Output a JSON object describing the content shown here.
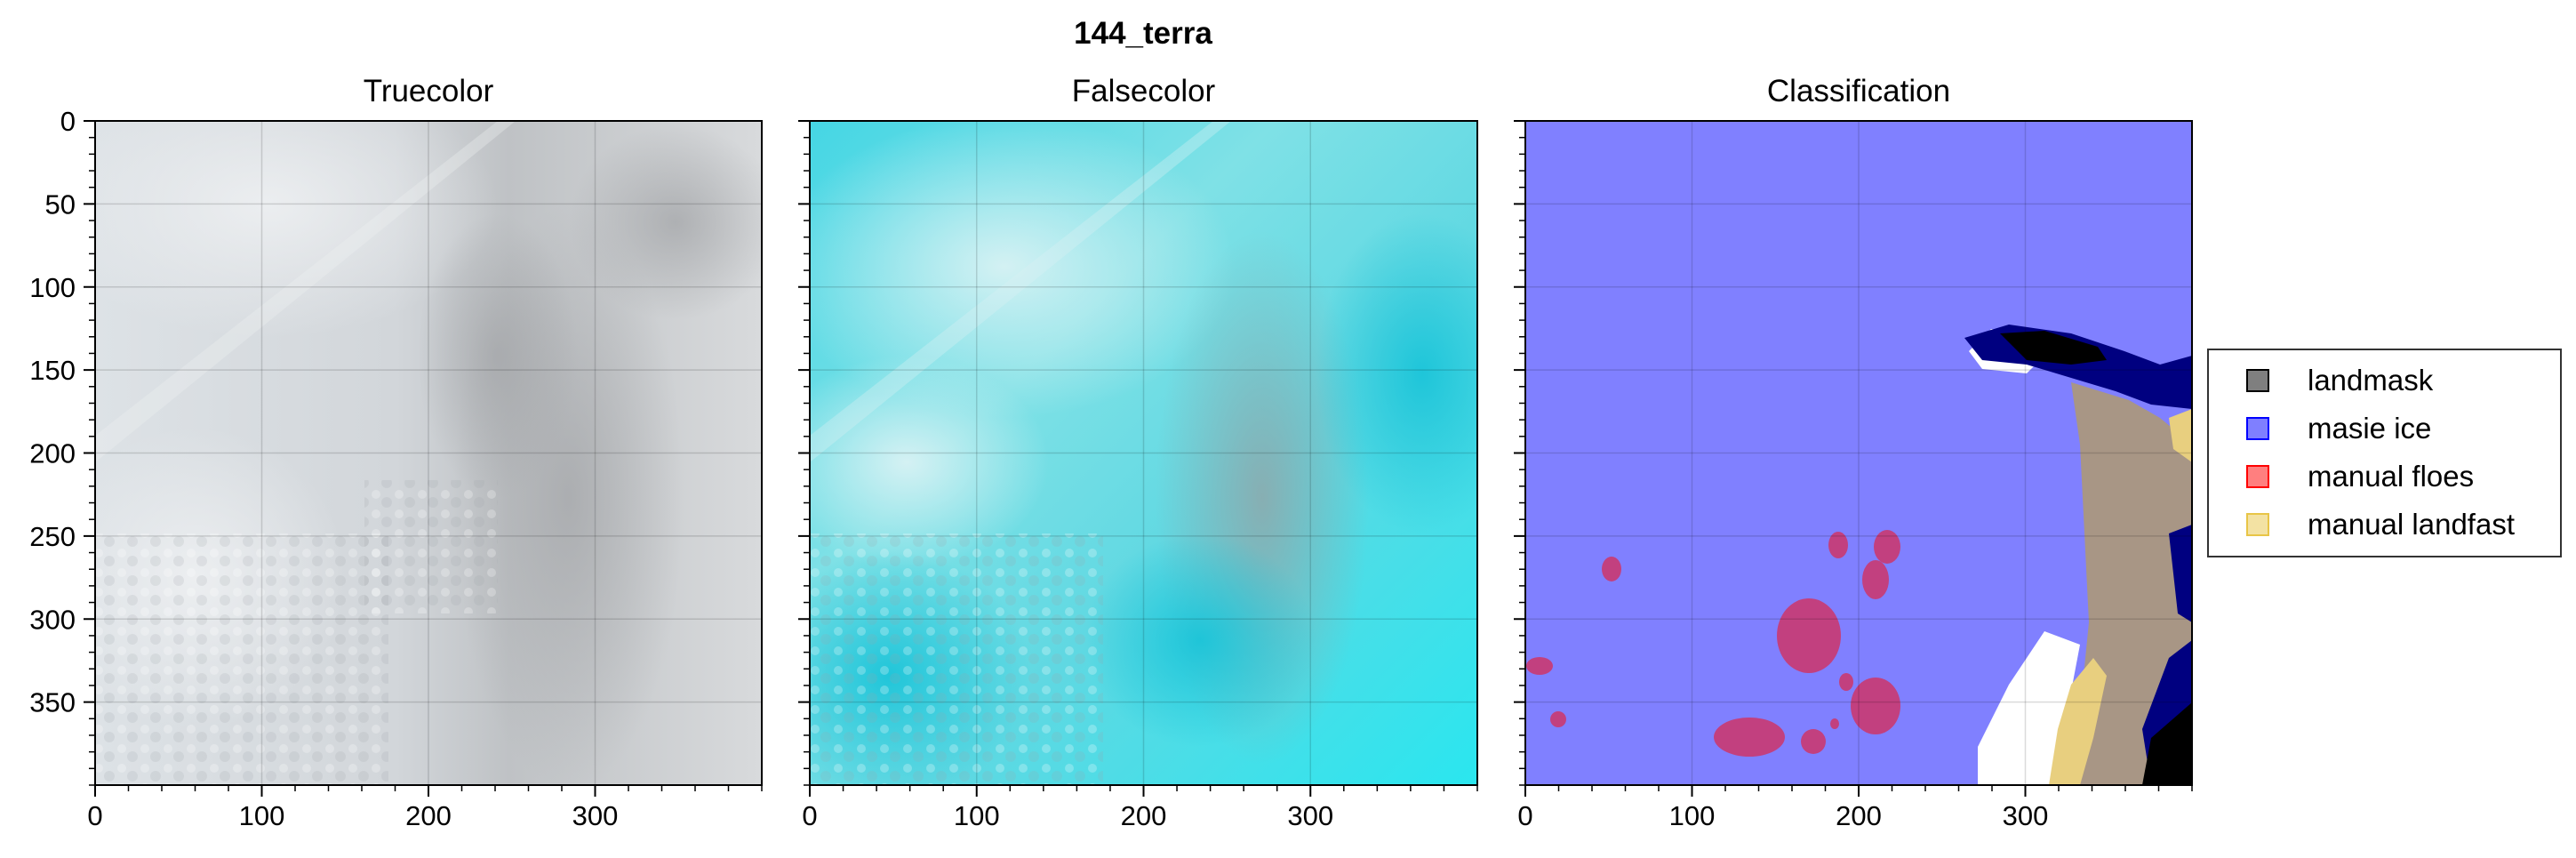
{
  "figure": {
    "title": "144_terra"
  },
  "chart_data": {
    "type": "image",
    "panels": [
      {
        "id": "truecolor",
        "title": "Truecolor",
        "x_ticks": [
          0,
          100,
          200,
          300
        ],
        "y_ticks": [
          0,
          50,
          100,
          150,
          200,
          250,
          300,
          350
        ],
        "xlim": [
          0,
          400
        ],
        "ylim": [
          400,
          0
        ],
        "grid": true
      },
      {
        "id": "falsecolor",
        "title": "Falsecolor",
        "x_ticks": [
          0,
          100,
          200,
          300
        ],
        "y_ticks": [
          0,
          50,
          100,
          150,
          200,
          250,
          300,
          350
        ],
        "xlim": [
          0,
          400
        ],
        "ylim": [
          400,
          0
        ],
        "grid": true
      },
      {
        "id": "classification",
        "title": "Classification",
        "x_ticks": [
          0,
          100,
          200,
          300
        ],
        "y_ticks": [
          0,
          50,
          100,
          150,
          200,
          250,
          300,
          350
        ],
        "xlim": [
          0,
          400
        ],
        "ylim": [
          400,
          0
        ],
        "grid": true
      }
    ],
    "legend": {
      "placement": "right",
      "entries": [
        {
          "label": "landmask",
          "color": "#000000"
        },
        {
          "label": "masie ice",
          "color": "#0000ff"
        },
        {
          "label": "manual floes",
          "color": "#ff0000"
        },
        {
          "label": "manual landfast",
          "color": "#e8c547"
        }
      ]
    }
  }
}
